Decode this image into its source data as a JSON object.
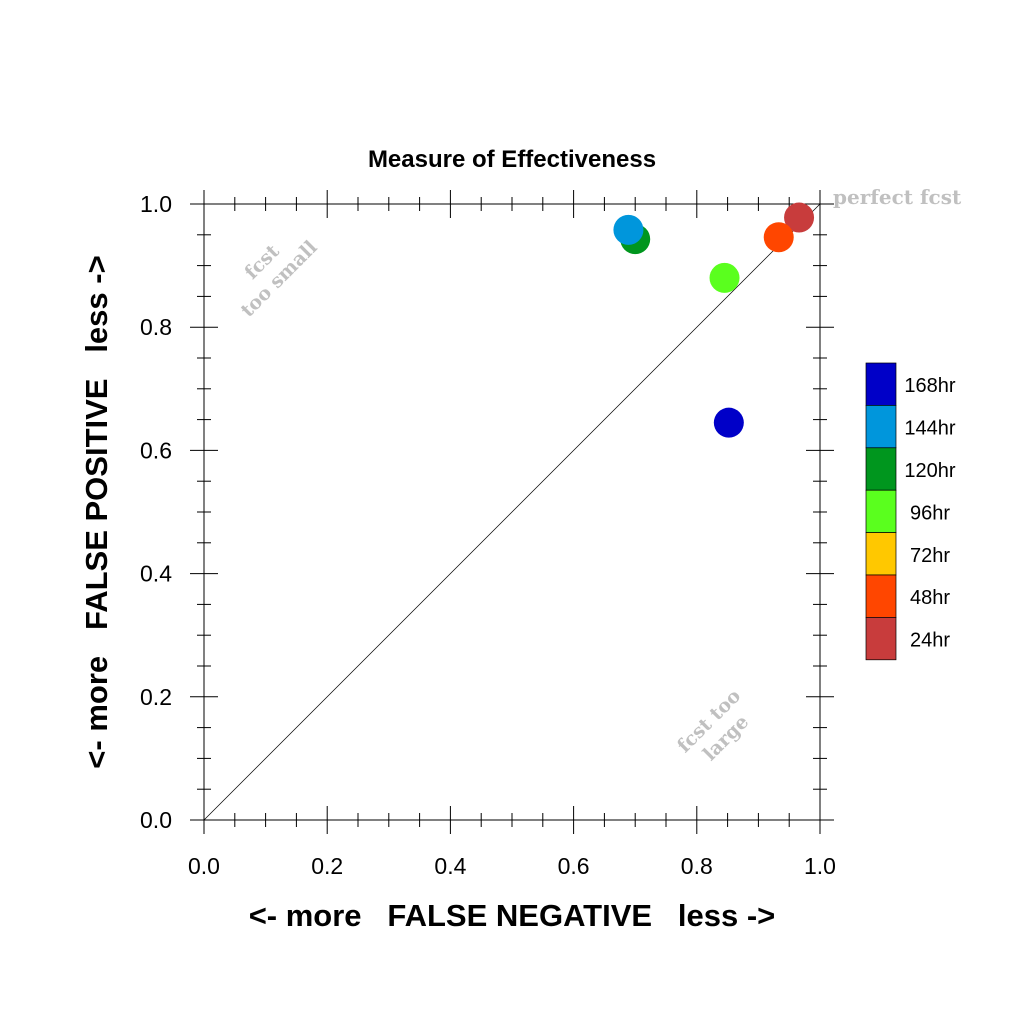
{
  "chart_data": {
    "type": "scatter",
    "title": "Measure of Effectiveness",
    "xlabel": "<- more   FALSE NEGATIVE   less ->",
    "ylabel": "<- more   FALSE POSITIVE   less ->",
    "xlim": [
      0.0,
      1.0
    ],
    "ylim": [
      0.0,
      1.0
    ],
    "x_ticks": [
      "0.0",
      "0.2",
      "0.4",
      "0.6",
      "0.8",
      "1.0"
    ],
    "y_ticks": [
      "0.0",
      "0.2",
      "0.4",
      "0.6",
      "0.8",
      "1.0"
    ],
    "grid": false,
    "reference_line": "diagonal y = x",
    "annotations": {
      "perfect": "perfect fcst",
      "too_small_1": "fcst",
      "too_small_2": "too small",
      "too_large_1": "fcst too",
      "too_large_2": "large"
    },
    "legend_position": "right",
    "legend": [
      {
        "label": "168hr",
        "color": "#0000c8"
      },
      {
        "label": "144hr",
        "color": "#0096dc"
      },
      {
        "label": "120hr",
        "color": "#00961e"
      },
      {
        "label": "96hr",
        "color": "#5aff1e"
      },
      {
        "label": "72hr",
        "color": "#ffc800"
      },
      {
        "label": "48hr",
        "color": "#ff4600"
      },
      {
        "label": "24hr",
        "color": "#c83c3c"
      }
    ],
    "series": [
      {
        "name": "24hr",
        "x": [
          0.966
        ],
        "y": [
          0.978
        ],
        "color": "#c83c3c"
      },
      {
        "name": "48hr",
        "x": [
          0.933
        ],
        "y": [
          0.946
        ],
        "color": "#ff4600"
      },
      {
        "name": "96hr",
        "x": [
          0.845
        ],
        "y": [
          0.88
        ],
        "color": "#5aff1e"
      },
      {
        "name": "120hr",
        "x": [
          0.7
        ],
        "y": [
          0.943
        ],
        "color": "#00961e"
      },
      {
        "name": "144hr",
        "x": [
          0.689
        ],
        "y": [
          0.958
        ],
        "color": "#0096dc"
      },
      {
        "name": "168hr",
        "x": [
          0.852
        ],
        "y": [
          0.645
        ],
        "color": "#0000c8"
      }
    ]
  }
}
